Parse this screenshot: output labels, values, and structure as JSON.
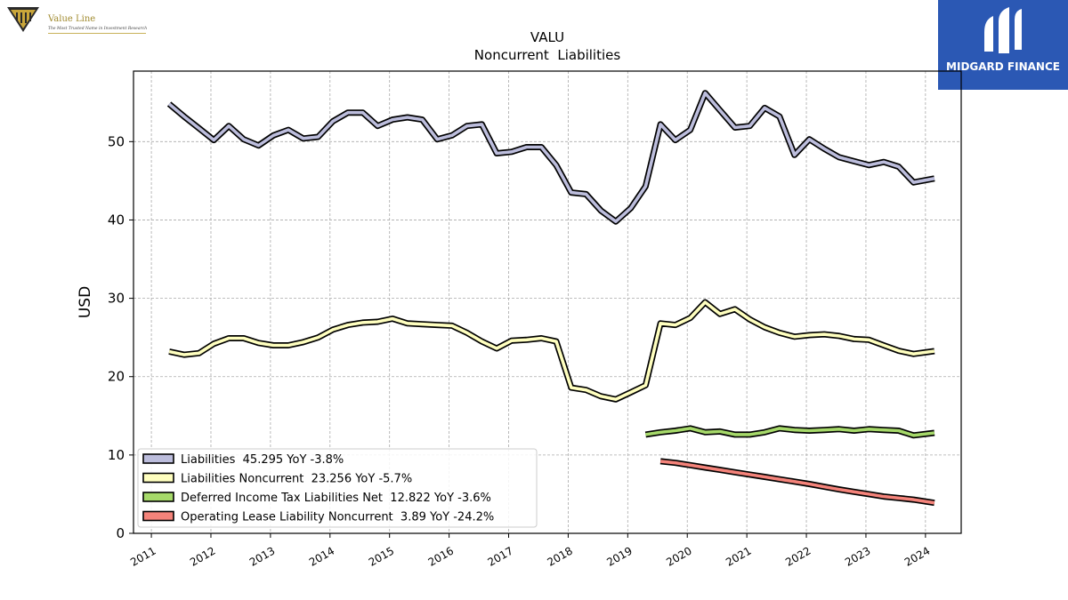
{
  "branding": {
    "valueline_name": "Value Line",
    "valueline_tagline": "The Most Trusted Name in Investment Research",
    "midgard_name": "MIDGARD FINANCE"
  },
  "chart_data": {
    "type": "line",
    "title": "VALU",
    "subtitle": "Noncurrent  Liabilities",
    "ylabel": "USD",
    "xlabel": "",
    "xlim": [
      2010.7,
      2024.6
    ],
    "ylim": [
      0,
      59
    ],
    "yticks": [
      0,
      10,
      20,
      30,
      40,
      50
    ],
    "xticks": [
      "2011",
      "2012",
      "2013",
      "2014",
      "2015",
      "2016",
      "2017",
      "2018",
      "2019",
      "2020",
      "2021",
      "2022",
      "2023",
      "2024"
    ],
    "grid": true,
    "legend_position": "lower-left",
    "series": [
      {
        "name": "Liabilities  45.295 YoY -3.8%",
        "color": "#bcbddc",
        "x": [
          2011.3,
          2011.55,
          2011.8,
          2012.05,
          2012.3,
          2012.55,
          2012.8,
          2013.05,
          2013.3,
          2013.55,
          2013.8,
          2014.05,
          2014.3,
          2014.55,
          2014.8,
          2015.05,
          2015.3,
          2015.55,
          2015.8,
          2016.05,
          2016.3,
          2016.55,
          2016.8,
          2017.05,
          2017.3,
          2017.55,
          2017.8,
          2018.05,
          2018.3,
          2018.55,
          2018.8,
          2019.05,
          2019.3,
          2019.55,
          2019.8,
          2020.05,
          2020.3,
          2020.55,
          2020.8,
          2021.05,
          2021.3,
          2021.55,
          2021.8,
          2022.05,
          2022.3,
          2022.55,
          2022.8,
          2023.05,
          2023.3,
          2023.55,
          2023.8,
          2024.15
        ],
        "y": [
          54.8,
          53.2,
          51.7,
          50.2,
          52.0,
          50.3,
          49.5,
          50.8,
          51.5,
          50.4,
          50.6,
          52.6,
          53.7,
          53.7,
          52.0,
          52.8,
          53.1,
          52.8,
          50.3,
          50.8,
          52.0,
          52.2,
          48.5,
          48.7,
          49.3,
          49.3,
          47.0,
          43.5,
          43.3,
          41.2,
          39.8,
          41.5,
          44.3,
          52.2,
          50.2,
          51.5,
          56.2,
          54.0,
          51.8,
          52.0,
          54.3,
          53.2,
          48.3,
          50.3,
          49.1,
          48.0,
          47.5,
          47.0,
          47.4,
          46.8,
          44.8,
          45.295
        ]
      },
      {
        "name": "Liabilities Noncurrent  23.256 YoY -5.7%",
        "color": "#ffffbf",
        "x": [
          2011.3,
          2011.55,
          2011.8,
          2012.05,
          2012.3,
          2012.55,
          2012.8,
          2013.05,
          2013.3,
          2013.55,
          2013.8,
          2014.05,
          2014.3,
          2014.55,
          2014.8,
          2015.05,
          2015.3,
          2015.55,
          2015.8,
          2016.05,
          2016.3,
          2016.55,
          2016.8,
          2017.05,
          2017.3,
          2017.55,
          2017.8,
          2018.05,
          2018.3,
          2018.55,
          2018.8,
          2019.05,
          2019.3,
          2019.55,
          2019.8,
          2020.05,
          2020.3,
          2020.55,
          2020.8,
          2021.05,
          2021.3,
          2021.55,
          2021.8,
          2022.05,
          2022.3,
          2022.55,
          2022.8,
          2023.05,
          2023.3,
          2023.55,
          2023.8,
          2024.15
        ],
        "y": [
          23.2,
          22.8,
          23.0,
          24.2,
          24.9,
          24.9,
          24.3,
          24.0,
          24.0,
          24.4,
          25.0,
          26.0,
          26.6,
          26.9,
          27.0,
          27.4,
          26.8,
          26.7,
          26.6,
          26.5,
          25.6,
          24.5,
          23.6,
          24.6,
          24.7,
          24.9,
          24.5,
          18.6,
          18.3,
          17.5,
          17.1,
          18.0,
          18.9,
          26.8,
          26.6,
          27.5,
          29.5,
          28.0,
          28.6,
          27.3,
          26.3,
          25.6,
          25.1,
          25.3,
          25.4,
          25.2,
          24.8,
          24.7,
          24.0,
          23.3,
          22.9,
          23.256
        ]
      },
      {
        "name": "Deferred Income Tax Liabilities Net  12.822 YoY -3.6%",
        "color": "#a6d96a",
        "x": [
          2019.3,
          2019.55,
          2019.8,
          2020.05,
          2020.3,
          2020.55,
          2020.8,
          2021.05,
          2021.3,
          2021.55,
          2021.8,
          2022.05,
          2022.3,
          2022.55,
          2022.8,
          2023.05,
          2023.3,
          2023.55,
          2023.8,
          2024.15
        ],
        "y": [
          12.6,
          12.9,
          13.1,
          13.4,
          12.9,
          13.0,
          12.6,
          12.6,
          12.9,
          13.4,
          13.2,
          13.1,
          13.2,
          13.3,
          13.1,
          13.3,
          13.2,
          13.1,
          12.5,
          12.822
        ]
      },
      {
        "name": "Operating Lease Liability Noncurrent  3.89 YoY -24.2%",
        "color": "#f4837a",
        "x": [
          2019.55,
          2019.8,
          2020.05,
          2020.3,
          2020.55,
          2020.8,
          2021.05,
          2021.3,
          2021.55,
          2021.8,
          2022.05,
          2022.3,
          2022.55,
          2022.8,
          2023.05,
          2023.3,
          2023.55,
          2023.8,
          2024.15
        ],
        "y": [
          9.2,
          9.0,
          8.7,
          8.4,
          8.1,
          7.8,
          7.5,
          7.2,
          6.9,
          6.6,
          6.3,
          5.95,
          5.6,
          5.3,
          5.0,
          4.7,
          4.5,
          4.3,
          3.89
        ]
      }
    ]
  }
}
